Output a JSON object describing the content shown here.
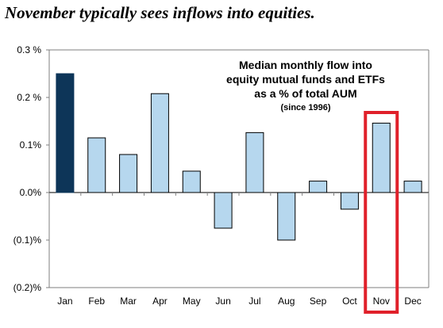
{
  "headline": "November typically sees inflows into equities.",
  "chart_data": {
    "type": "bar",
    "categories": [
      "Jan",
      "Feb",
      "Mar",
      "Apr",
      "May",
      "Jun",
      "Jul",
      "Aug",
      "Sep",
      "Oct",
      "Nov",
      "Dec"
    ],
    "values": [
      0.25,
      0.115,
      0.08,
      0.208,
      0.045,
      -0.075,
      0.126,
      -0.1,
      0.024,
      -0.035,
      0.146,
      0.024
    ],
    "ylim": [
      -0.2,
      0.3
    ],
    "yticks": [
      0.3,
      0.2,
      0.1,
      0.0,
      -0.1,
      -0.2
    ],
    "ytick_labels": [
      "0.3 %",
      "0.2 %",
      "0.1%",
      "0.0%",
      "(0.1)%",
      "(0.2)%"
    ],
    "annotation_lines": [
      "Median monthly flow into",
      "equity mutual funds and ETFs",
      "as a % of total AUM"
    ],
    "annotation_sub": "(since 1996)",
    "highlight_category": "Nov",
    "colors": {
      "first_bar": "#0d3558",
      "bars": "#b6d7ee",
      "bar_outline": "#000000",
      "highlight_box": "#e0202a"
    },
    "grid": false
  }
}
